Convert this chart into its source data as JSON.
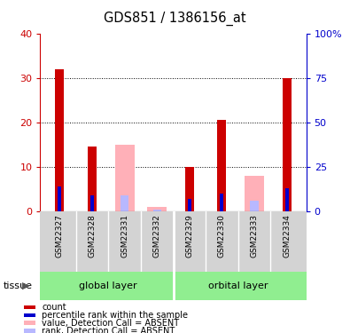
{
  "title": "GDS851 / 1386156_at",
  "samples": [
    "GSM22327",
    "GSM22328",
    "GSM22331",
    "GSM22332",
    "GSM22329",
    "GSM22330",
    "GSM22333",
    "GSM22334"
  ],
  "count_values": [
    32,
    14.5,
    0,
    0,
    10,
    20.5,
    0,
    30
  ],
  "rank_values": [
    14,
    9,
    0,
    0,
    7,
    10,
    0,
    13
  ],
  "absent_value_values": [
    0,
    0,
    15,
    1,
    0,
    0,
    8,
    0
  ],
  "absent_rank_values": [
    0,
    0,
    9,
    1,
    0,
    0,
    6,
    0
  ],
  "ylim": [
    0,
    40
  ],
  "y2lim": [
    0,
    100
  ],
  "yticks": [
    0,
    10,
    20,
    30,
    40
  ],
  "y2ticks": [
    0,
    25,
    50,
    75,
    100
  ],
  "y2ticklabels": [
    "0",
    "25",
    "50",
    "75",
    "100%"
  ],
  "color_count": "#cc0000",
  "color_rank": "#0000cc",
  "color_absent_value": "#ffb0b8",
  "color_absent_rank": "#b8b8ff",
  "group_label_bg": "#90ee90",
  "sample_area_bg": "#d3d3d3",
  "global_group_label": "global layer",
  "orbital_group_label": "orbital layer",
  "tissue_label": "tissue"
}
